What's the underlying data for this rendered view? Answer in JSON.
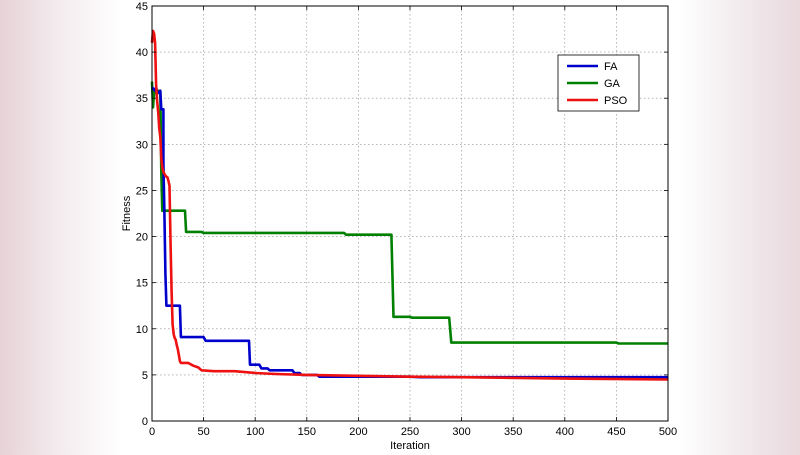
{
  "chart_data": {
    "type": "line",
    "title": "",
    "xlabel": "Iteration",
    "ylabel": "Fitness",
    "xlim": [
      0,
      500
    ],
    "ylim": [
      0,
      45
    ],
    "xticks": [
      0,
      50,
      100,
      150,
      200,
      250,
      300,
      350,
      400,
      450,
      500
    ],
    "yticks": [
      0,
      5,
      10,
      15,
      20,
      25,
      30,
      35,
      40,
      45
    ],
    "grid": true,
    "legend_position": "top-right",
    "series": [
      {
        "name": "FA",
        "color": "#0000cc",
        "points": [
          [
            0,
            36.2
          ],
          [
            3,
            35.8
          ],
          [
            4,
            36.2
          ],
          [
            5,
            35.5
          ],
          [
            8,
            35.8
          ],
          [
            9,
            33.8
          ],
          [
            11,
            33.8
          ],
          [
            11,
            28
          ],
          [
            12,
            22.6
          ],
          [
            13,
            16
          ],
          [
            14,
            12.5
          ],
          [
            27,
            12.5
          ],
          [
            28,
            9.1
          ],
          [
            50,
            9.1
          ],
          [
            52,
            8.7
          ],
          [
            94,
            8.7
          ],
          [
            95,
            6.1
          ],
          [
            104,
            6.1
          ],
          [
            106,
            5.7
          ],
          [
            112,
            5.7
          ],
          [
            114,
            5.5
          ],
          [
            126,
            5.5
          ],
          [
            128,
            5.5
          ],
          [
            136,
            5.5
          ],
          [
            138,
            5.2
          ],
          [
            143,
            5.2
          ],
          [
            145,
            5.0
          ],
          [
            160,
            5.0
          ],
          [
            162,
            4.8
          ],
          [
            250,
            4.8
          ],
          [
            260,
            4.75
          ],
          [
            500,
            4.75
          ]
        ]
      },
      {
        "name": "GA",
        "color": "#008000",
        "points": [
          [
            0,
            36.8
          ],
          [
            1,
            34
          ],
          [
            2,
            35.6
          ],
          [
            5,
            35.8
          ],
          [
            8,
            35.8
          ],
          [
            9,
            27
          ],
          [
            10,
            22.8
          ],
          [
            32,
            22.8
          ],
          [
            33,
            20.5
          ],
          [
            48,
            20.5
          ],
          [
            50,
            20.4
          ],
          [
            186,
            20.4
          ],
          [
            188,
            20.2
          ],
          [
            232,
            20.2
          ],
          [
            234,
            11.3
          ],
          [
            250,
            11.3
          ],
          [
            252,
            11.2
          ],
          [
            288,
            11.2
          ],
          [
            290,
            8.5
          ],
          [
            450,
            8.5
          ],
          [
            452,
            8.4
          ],
          [
            500,
            8.4
          ]
        ]
      },
      {
        "name": "PSO",
        "color": "#ee1111",
        "points": [
          [
            0,
            41
          ],
          [
            1,
            42.3
          ],
          [
            2,
            42
          ],
          [
            3,
            41
          ],
          [
            4,
            36.5
          ],
          [
            5,
            34.6
          ],
          [
            6,
            33.5
          ],
          [
            7,
            31.8
          ],
          [
            8,
            30.8
          ],
          [
            9,
            28.5
          ],
          [
            10,
            27.5
          ],
          [
            11,
            27
          ],
          [
            12,
            26.8
          ],
          [
            13,
            26.6
          ],
          [
            14,
            26.5
          ],
          [
            15,
            26.4
          ],
          [
            16,
            26
          ],
          [
            17,
            25.5
          ],
          [
            18,
            19
          ],
          [
            19,
            14
          ],
          [
            20,
            10.5
          ],
          [
            21,
            9.4
          ],
          [
            22,
            9
          ],
          [
            23,
            8.8
          ],
          [
            24,
            8.2
          ],
          [
            25,
            7.8
          ],
          [
            26,
            7.2
          ],
          [
            27,
            6.5
          ],
          [
            28,
            6.3
          ],
          [
            35,
            6.3
          ],
          [
            40,
            6.0
          ],
          [
            45,
            5.8
          ],
          [
            48,
            5.5
          ],
          [
            60,
            5.4
          ],
          [
            80,
            5.4
          ],
          [
            100,
            5.2
          ],
          [
            120,
            5.1
          ],
          [
            150,
            5.0
          ],
          [
            200,
            4.9
          ],
          [
            250,
            4.8
          ],
          [
            300,
            4.75
          ],
          [
            400,
            4.6
          ],
          [
            500,
            4.5
          ]
        ]
      }
    ]
  }
}
